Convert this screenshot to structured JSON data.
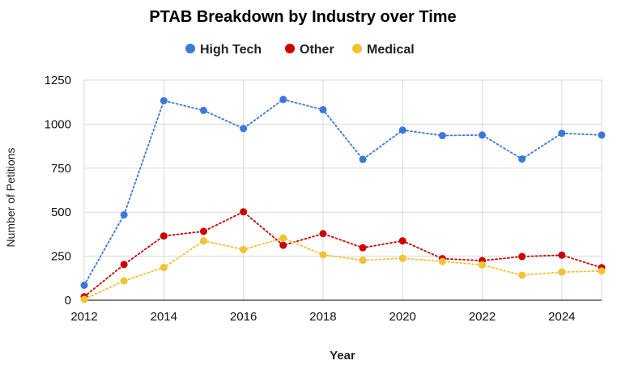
{
  "chart_data": {
    "type": "line",
    "title": "PTAB Breakdown by Industry over Time",
    "xlabel": "Year",
    "ylabel": "Number of Petitions",
    "x": [
      2012,
      2013,
      2014,
      2015,
      2016,
      2017,
      2018,
      2019,
      2020,
      2021,
      2022,
      2023,
      2024,
      2025
    ],
    "xlim": [
      2012,
      2025
    ],
    "ylim": [
      0,
      1250
    ],
    "xticks": [
      "2012",
      "2014",
      "2016",
      "2018",
      "2020",
      "2022",
      "2024"
    ],
    "yticks": [
      "0",
      "250",
      "500",
      "750",
      "1000",
      "1250"
    ],
    "grid": true,
    "legend_position": "top-center",
    "line_style": "dotted",
    "series": [
      {
        "name": "High Tech",
        "color": "#3c78d8",
        "values": [
          85,
          485,
          1133,
          1078,
          975,
          1140,
          1082,
          800,
          966,
          935,
          938,
          802,
          948,
          938
        ]
      },
      {
        "name": "Other",
        "color": "#cc0000",
        "values": [
          20,
          203,
          365,
          391,
          502,
          312,
          378,
          298,
          337,
          236,
          225,
          248,
          256,
          185
        ]
      },
      {
        "name": "Medical",
        "color": "#f1c232",
        "values": [
          5,
          110,
          186,
          337,
          288,
          353,
          258,
          227,
          238,
          220,
          201,
          142,
          160,
          166
        ]
      }
    ]
  }
}
